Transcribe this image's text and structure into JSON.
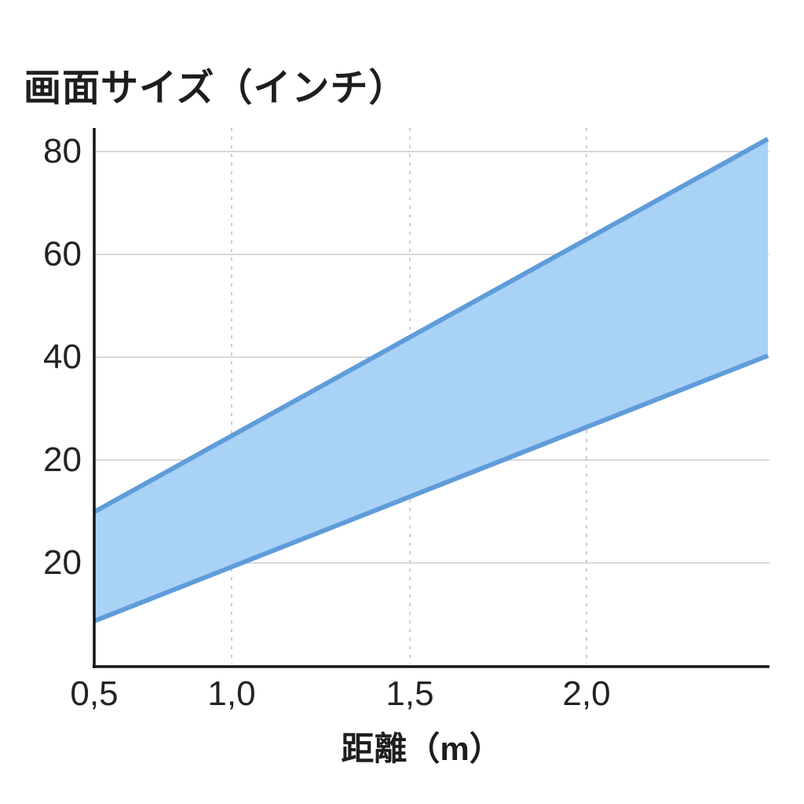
{
  "title": "画面サイズ（インチ）",
  "x_axis": {
    "label": "距離（m）",
    "tick_labels": [
      "0,5",
      "1,0",
      "1,5",
      "2,0"
    ]
  },
  "y_axis": {
    "tick_labels": [
      "80",
      "60",
      "40",
      "20",
      "20"
    ]
  },
  "colors": {
    "band_fill": "#A9D2F7",
    "band_edge": "#5F9CDA",
    "grid_solid": "#D9D9D9",
    "grid_dashed": "#CDCDCD",
    "axis": "#151515",
    "text": "#1E1E1E"
  },
  "chart_data": {
    "type": "area",
    "title": "画面サイズ（インチ）",
    "xlabel": "距離（m）",
    "ylabel": "画面サイズ（インチ）",
    "x_tick_labels": [
      "0,5",
      "1,0",
      "1,5",
      "2,0"
    ],
    "x_tick_values_m": [
      0.5,
      1.0,
      1.5,
      2.0
    ],
    "y_tick_labels": [
      "80",
      "60",
      "40",
      "20",
      "20"
    ],
    "grid": {
      "horizontal": "solid",
      "vertical": "dashed"
    },
    "legend_position": "none",
    "band": {
      "x_range_m": [
        0.5,
        2.5
      ],
      "upper_line_inches": [
        10,
        82
      ],
      "lower_line_inches": [
        -12,
        41
      ]
    }
  },
  "geometry": {
    "band": "120,652 978,177 978,453 120,791",
    "upper_edge": "120,652 978,177",
    "lower_edge": "120,791 978,453",
    "h_gridlines": {
      "g0": "121,193 980,193",
      "g1": "121,324 980,324",
      "g2": "121,455 980,455",
      "g3": "121,586 980,586",
      "g4": "121,717 980,717"
    },
    "v_gridlines": {
      "g0": "295,163 295,846",
      "g1": "522,163 522,846",
      "g2": "747,163 747,846"
    },
    "y_axis_line": "120,163 120,851",
    "x_axis_line": "118,849 980,849"
  }
}
